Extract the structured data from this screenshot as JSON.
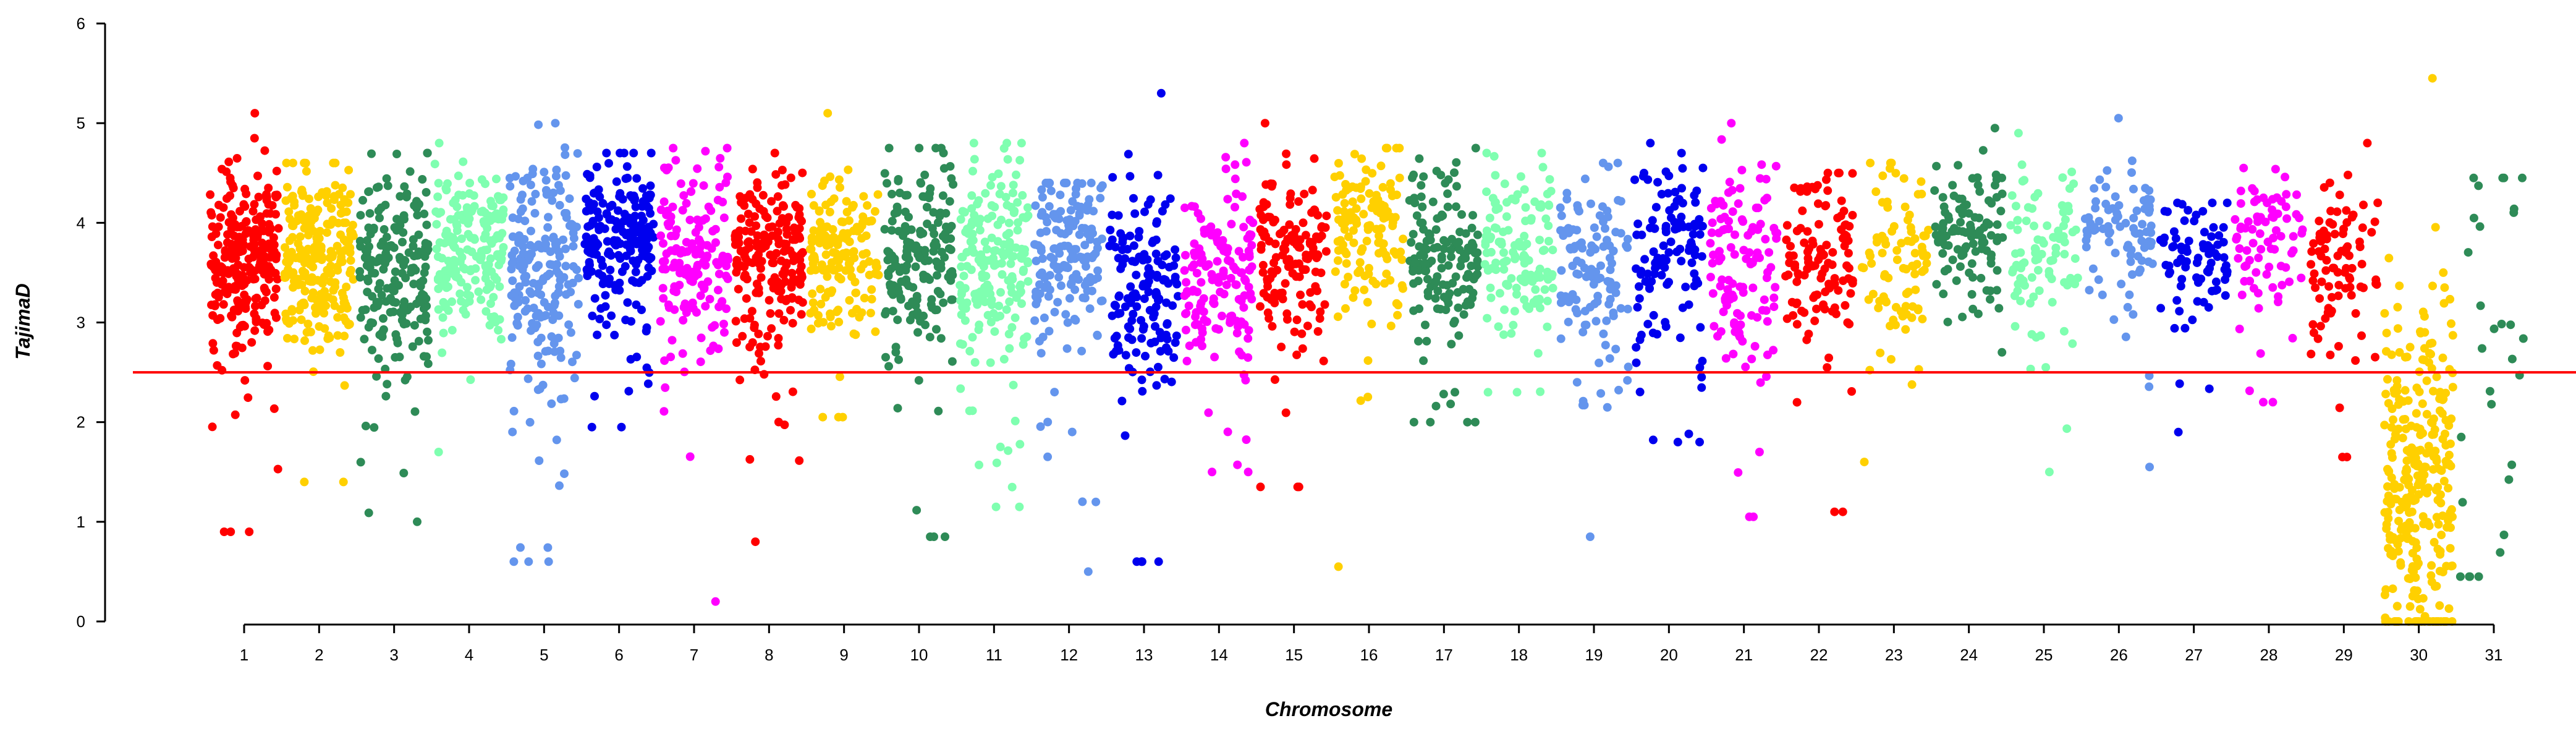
{
  "chart_data": {
    "type": "scatter",
    "title": "",
    "xlabel": "Chromosome",
    "ylabel": "TajimaD",
    "ylim": [
      0,
      6
    ],
    "y_ticks": [
      0,
      1,
      2,
      3,
      4,
      5,
      6
    ],
    "x_ticks": [
      "1",
      "2",
      "3",
      "4",
      "5",
      "6",
      "7",
      "8",
      "9",
      "10",
      "11",
      "12",
      "13",
      "14",
      "15",
      "16",
      "17",
      "18",
      "19",
      "20",
      "21",
      "22",
      "23",
      "24",
      "25",
      "26",
      "27",
      "28",
      "29",
      "30",
      "31"
    ],
    "grid": false,
    "legend": "none",
    "threshold": {
      "value": 2.5,
      "color": "#ff0000"
    },
    "point_colors": [
      "#ff0000",
      "#ffd000",
      "#2e8b57",
      "#7fffb0",
      "#6495ed",
      "#0000ee",
      "#ff00ff"
    ],
    "series": [
      {
        "chromosome": "1",
        "color": "#ff0000",
        "mean": 3.6,
        "spread": 0.45,
        "min": 0.9,
        "max": 5.1,
        "count": 260
      },
      {
        "chromosome": "2",
        "color": "#ffd000",
        "mean": 3.65,
        "spread": 0.45,
        "min": 1.4,
        "max": 4.6,
        "count": 240
      },
      {
        "chromosome": "3",
        "color": "#2e8b57",
        "mean": 3.5,
        "spread": 0.5,
        "min": 1.0,
        "max": 4.7,
        "count": 200
      },
      {
        "chromosome": "4",
        "color": "#7fffb0",
        "mean": 3.7,
        "spread": 0.4,
        "min": 1.7,
        "max": 4.8,
        "count": 190
      },
      {
        "chromosome": "5",
        "color": "#6495ed",
        "mean": 3.55,
        "spread": 0.55,
        "min": 0.6,
        "max": 5.0,
        "count": 200
      },
      {
        "chromosome": "6",
        "color": "#0000ee",
        "mean": 3.9,
        "spread": 0.35,
        "min": 1.95,
        "max": 4.7,
        "count": 200
      },
      {
        "chromosome": "7",
        "color": "#ff00ff",
        "mean": 3.7,
        "spread": 0.45,
        "min": 0.2,
        "max": 4.75,
        "count": 160
      },
      {
        "chromosome": "8",
        "color": "#ff0000",
        "mean": 3.6,
        "spread": 0.45,
        "min": 0.8,
        "max": 4.7,
        "count": 200
      },
      {
        "chromosome": "9",
        "color": "#ffd000",
        "mean": 3.75,
        "spread": 0.4,
        "min": 2.05,
        "max": 5.1,
        "count": 160
      },
      {
        "chromosome": "10",
        "color": "#2e8b57",
        "mean": 3.7,
        "spread": 0.45,
        "min": 0.85,
        "max": 4.75,
        "count": 180
      },
      {
        "chromosome": "11",
        "color": "#7fffb0",
        "mean": 3.6,
        "spread": 0.5,
        "min": 1.15,
        "max": 4.8,
        "count": 190
      },
      {
        "chromosome": "12",
        "color": "#6495ed",
        "mean": 3.7,
        "spread": 0.45,
        "min": 0.5,
        "max": 4.4,
        "count": 170
      },
      {
        "chromosome": "13",
        "color": "#0000ee",
        "mean": 3.4,
        "spread": 0.5,
        "min": 0.6,
        "max": 5.3,
        "count": 150
      },
      {
        "chromosome": "14",
        "color": "#ff00ff",
        "mean": 3.5,
        "spread": 0.45,
        "min": 1.5,
        "max": 4.8,
        "count": 150
      },
      {
        "chromosome": "15",
        "color": "#ff0000",
        "mean": 3.7,
        "spread": 0.4,
        "min": 1.35,
        "max": 5.0,
        "count": 150
      },
      {
        "chromosome": "16",
        "color": "#ffd000",
        "mean": 3.85,
        "spread": 0.45,
        "min": 0.55,
        "max": 4.75,
        "count": 130
      },
      {
        "chromosome": "17",
        "color": "#2e8b57",
        "mean": 3.7,
        "spread": 0.4,
        "min": 2.0,
        "max": 4.75,
        "count": 150
      },
      {
        "chromosome": "18",
        "color": "#7fffb0",
        "mean": 3.65,
        "spread": 0.45,
        "min": 2.3,
        "max": 4.7,
        "count": 130
      },
      {
        "chromosome": "19",
        "color": "#6495ed",
        "mean": 3.55,
        "spread": 0.5,
        "min": 0.85,
        "max": 4.6,
        "count": 120
      },
      {
        "chromosome": "20",
        "color": "#0000ee",
        "mean": 3.7,
        "spread": 0.45,
        "min": 1.8,
        "max": 4.8,
        "count": 120
      },
      {
        "chromosome": "21",
        "color": "#ff00ff",
        "mean": 3.55,
        "spread": 0.5,
        "min": 1.05,
        "max": 5.0,
        "count": 120
      },
      {
        "chromosome": "22",
        "color": "#ff0000",
        "mean": 3.7,
        "spread": 0.45,
        "min": 1.1,
        "max": 4.5,
        "count": 120
      },
      {
        "chromosome": "23",
        "color": "#ffd000",
        "mean": 3.65,
        "spread": 0.45,
        "min": 1.6,
        "max": 4.6,
        "count": 90
      },
      {
        "chromosome": "24",
        "color": "#2e8b57",
        "mean": 3.9,
        "spread": 0.35,
        "min": 2.7,
        "max": 4.95,
        "count": 110
      },
      {
        "chromosome": "25",
        "color": "#7fffb0",
        "mean": 3.7,
        "spread": 0.4,
        "min": 1.5,
        "max": 4.9,
        "count": 90
      },
      {
        "chromosome": "26",
        "color": "#6495ed",
        "mean": 3.9,
        "spread": 0.35,
        "min": 1.55,
        "max": 5.05,
        "count": 90
      },
      {
        "chromosome": "27",
        "color": "#0000ee",
        "mean": 3.6,
        "spread": 0.35,
        "min": 1.9,
        "max": 4.2,
        "count": 80
      },
      {
        "chromosome": "28",
        "color": "#ff00ff",
        "mean": 3.85,
        "spread": 0.35,
        "min": 2.2,
        "max": 4.55,
        "count": 80
      },
      {
        "chromosome": "29",
        "color": "#ff0000",
        "mean": 3.6,
        "spread": 0.45,
        "min": 1.65,
        "max": 4.8,
        "count": 90
      },
      {
        "chromosome": "30",
        "color": "#ffd000",
        "mean": 1.5,
        "spread": 0.9,
        "min": 0.0,
        "max": 5.45,
        "count": 300
      },
      {
        "chromosome": "31",
        "color": "#2e8b57",
        "mean": 3.0,
        "spread": 1.1,
        "min": 0.45,
        "max": 4.45,
        "count": 30
      }
    ]
  }
}
